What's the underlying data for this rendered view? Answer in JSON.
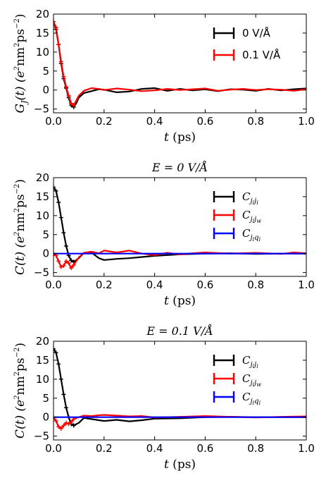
{
  "chart_data": [
    {
      "type": "line",
      "title": "",
      "xlabel": "t (ps)",
      "ylabel": "G_J(t) (e^2nm^2ps^-2)",
      "xlim": [
        0,
        1.0
      ],
      "ylim": [
        -6,
        20
      ],
      "xticks": [
        "0.0",
        "0.2",
        "0.4",
        "0.6",
        "0.8",
        "1.0"
      ],
      "yticks": [
        "−5",
        "0",
        "5",
        "10",
        "15",
        "20"
      ],
      "legend": "top-right",
      "series": [
        {
          "name": "0 V/Å",
          "color": "#000000",
          "x": [
            0,
            0.01,
            0.02,
            0.03,
            0.04,
            0.05,
            0.06,
            0.07,
            0.08,
            0.09,
            0.1,
            0.12,
            0.15,
            0.18,
            0.2,
            0.25,
            0.3,
            0.35,
            0.4,
            0.45,
            0.5,
            0.55,
            0.6,
            0.65,
            0.7,
            0.75,
            0.8,
            0.85,
            0.9,
            0.95,
            1.0
          ],
          "y": [
            18,
            16,
            12,
            7,
            3,
            0.5,
            -2,
            -4,
            -4.5,
            -3.5,
            -2,
            -0.8,
            -0.3,
            0.2,
            0.1,
            -0.6,
            -0.4,
            0.3,
            0.5,
            -0.2,
            0.3,
            -0.1,
            0.2,
            -0.3,
            0.2,
            0.1,
            -0.2,
            0.3,
            -0.1,
            0.2,
            0.4
          ]
        },
        {
          "name": "0.1 V/Å",
          "color": "#ff0000",
          "x": [
            0,
            0.01,
            0.02,
            0.03,
            0.04,
            0.05,
            0.06,
            0.07,
            0.08,
            0.09,
            0.1,
            0.12,
            0.15,
            0.18,
            0.2,
            0.25,
            0.3,
            0.35,
            0.4,
            0.45,
            0.5,
            0.55,
            0.6,
            0.65,
            0.7,
            0.75,
            0.8,
            0.85,
            0.9,
            0.95,
            1.0
          ],
          "y": [
            18,
            16.5,
            12,
            7.5,
            3.5,
            0.8,
            -1.5,
            -3.5,
            -4,
            -2.8,
            -1.5,
            -0.2,
            0.5,
            0.3,
            0,
            0.4,
            0.1,
            -0.3,
            -0.1,
            0.3,
            0,
            0.2,
            0.4,
            -0.2,
            0.1,
            0.3,
            0,
            0.2,
            0.1,
            -0.2,
            0.2
          ]
        }
      ]
    },
    {
      "type": "line",
      "title": "E = 0 V/Å",
      "xlabel": "t (ps)",
      "ylabel": "C(t) (e^2nm^2ps^-2)",
      "xlim": [
        0,
        1.0
      ],
      "ylim": [
        -6,
        20
      ],
      "xticks": [
        "0.0",
        "0.2",
        "0.4",
        "0.6",
        "0.8",
        "1.0"
      ],
      "yticks": [
        "−5",
        "0",
        "5",
        "10",
        "15",
        "20"
      ],
      "legend": "top-right",
      "series": [
        {
          "name": "C_{j_i j_i}",
          "color": "#000000",
          "x": [
            0,
            0.01,
            0.02,
            0.03,
            0.04,
            0.05,
            0.06,
            0.07,
            0.08,
            0.1,
            0.12,
            0.15,
            0.18,
            0.2,
            0.25,
            0.3,
            0.35,
            0.4,
            0.5,
            0.6,
            0.7,
            0.8,
            0.9,
            1.0
          ],
          "y": [
            17.5,
            16.5,
            13.5,
            9.5,
            5.5,
            2,
            -0.5,
            -1.8,
            -2.2,
            -1.2,
            0.2,
            0.3,
            -1.2,
            -1.7,
            -1.4,
            -1.2,
            -0.9,
            -0.6,
            -0.2,
            0,
            0.1,
            -0.1,
            0,
            0
          ]
        },
        {
          "name": "C_{j_i j_w}",
          "color": "#ff0000",
          "x": [
            0,
            0.01,
            0.02,
            0.03,
            0.04,
            0.05,
            0.06,
            0.07,
            0.08,
            0.1,
            0.12,
            0.15,
            0.18,
            0.2,
            0.25,
            0.3,
            0.35,
            0.4,
            0.45,
            0.5,
            0.55,
            0.6,
            0.7,
            0.8,
            0.9,
            0.95,
            1.0
          ],
          "y": [
            0,
            -0.5,
            -2,
            -3.5,
            -3.2,
            -2,
            -2.5,
            -3.8,
            -3,
            -1,
            0.2,
            0.5,
            0.1,
            0.8,
            0.3,
            0.8,
            0,
            -0.4,
            0.2,
            -0.2,
            0.1,
            0.3,
            0,
            0.2,
            -0.1,
            0.3,
            0.1
          ]
        },
        {
          "name": "C_{j_i q_i}",
          "color": "#0000ff",
          "x": [
            0,
            0.05,
            0.1,
            0.15,
            0.2,
            0.3,
            0.4,
            0.5,
            0.6,
            0.7,
            0.8,
            0.9,
            1.0
          ],
          "y": [
            0,
            0,
            0,
            0,
            0,
            0,
            0,
            0,
            0,
            0,
            0,
            0,
            0
          ]
        }
      ]
    },
    {
      "type": "line",
      "title": "E = 0.1 V/Å",
      "xlabel": "t (ps)",
      "ylabel": "C(t) (e^2nm^2ps^-2)",
      "xlim": [
        0,
        1.0
      ],
      "ylim": [
        -6,
        20
      ],
      "xticks": [
        "0.0",
        "0.2",
        "0.4",
        "0.6",
        "0.8",
        "1.0"
      ],
      "yticks": [
        "−5",
        "0",
        "5",
        "10",
        "15",
        "20"
      ],
      "legend": "top-right",
      "series": [
        {
          "name": "C_{j_i j_i}",
          "color": "#000000",
          "x": [
            0,
            0.01,
            0.02,
            0.03,
            0.04,
            0.05,
            0.06,
            0.07,
            0.08,
            0.1,
            0.12,
            0.15,
            0.2,
            0.25,
            0.3,
            0.35,
            0.4,
            0.5,
            0.6,
            0.7,
            0.8,
            0.9,
            1.0
          ],
          "y": [
            18,
            17,
            14,
            10,
            6,
            2.5,
            0,
            -1.8,
            -2.2,
            -1.5,
            -0.2,
            -0.5,
            -1,
            -0.7,
            -1.1,
            -0.8,
            -0.4,
            -0.3,
            0,
            0.1,
            0,
            0,
            0
          ]
        },
        {
          "name": "C_{j_i j_w}",
          "color": "#ff0000",
          "x": [
            0,
            0.01,
            0.02,
            0.03,
            0.04,
            0.05,
            0.06,
            0.07,
            0.08,
            0.1,
            0.12,
            0.15,
            0.18,
            0.2,
            0.25,
            0.3,
            0.35,
            0.4,
            0.5,
            0.6,
            0.7,
            0.8,
            0.9,
            1.0
          ],
          "y": [
            0,
            -1,
            -2.5,
            -3,
            -2.2,
            -1.5,
            -1.8,
            -1.3,
            -0.5,
            0,
            0.4,
            0.3,
            0.5,
            0.6,
            0.4,
            0.2,
            0.3,
            -0.1,
            0.1,
            0.3,
            0.1,
            -0.1,
            0.1,
            0.2
          ]
        },
        {
          "name": "C_{j_i q_i}",
          "color": "#0000ff",
          "x": [
            0,
            0.05,
            0.1,
            0.15,
            0.2,
            0.3,
            0.4,
            0.5,
            0.6,
            0.7,
            0.8,
            0.9,
            1.0
          ],
          "y": [
            0,
            0,
            0,
            0,
            0,
            0,
            0,
            0,
            0,
            0,
            0,
            0,
            0
          ]
        }
      ]
    }
  ]
}
